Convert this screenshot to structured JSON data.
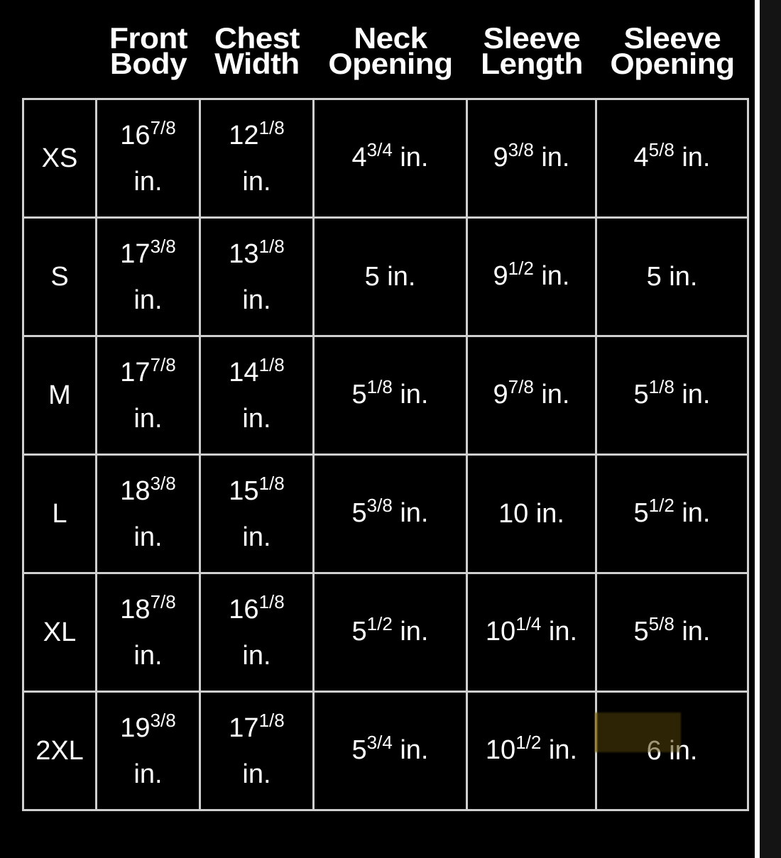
{
  "headers": [
    {
      "line1": "Front",
      "line2": "Body"
    },
    {
      "line1": "Chest",
      "line2": "Width"
    },
    {
      "line1": "Neck",
      "line2": "Opening"
    },
    {
      "line1": "Sleeve",
      "line2": "Length"
    },
    {
      "line1": "Sleeve",
      "line2": "Opening"
    }
  ],
  "unit": "in.",
  "highlight_color": "#8a7120",
  "rows": [
    {
      "size": "XS",
      "cells": [
        [
          "16",
          "7/8"
        ],
        [
          "12",
          "1/8"
        ],
        [
          "4",
          "3/4"
        ],
        [
          "9",
          "3/8"
        ],
        [
          "4",
          "5/8"
        ]
      ]
    },
    {
      "size": "S",
      "cells": [
        [
          "17",
          "3/8"
        ],
        [
          "13",
          "1/8"
        ],
        [
          "5",
          ""
        ],
        [
          "9",
          "1/2"
        ],
        [
          "5",
          ""
        ]
      ]
    },
    {
      "size": "M",
      "cells": [
        [
          "17",
          "7/8"
        ],
        [
          "14",
          "1/8"
        ],
        [
          "5",
          "1/8"
        ],
        [
          "9",
          "7/8"
        ],
        [
          "5",
          "1/8"
        ]
      ]
    },
    {
      "size": "L",
      "cells": [
        [
          "18",
          "3/8"
        ],
        [
          "15",
          "1/8"
        ],
        [
          "5",
          "3/8"
        ],
        [
          "10",
          ""
        ],
        [
          "5",
          "1/2"
        ]
      ]
    },
    {
      "size": "XL",
      "cells": [
        [
          "18",
          "7/8"
        ],
        [
          "16",
          "1/8"
        ],
        [
          "5",
          "1/2"
        ],
        [
          "10",
          "1/4"
        ],
        [
          "5",
          "5/8"
        ]
      ]
    },
    {
      "size": "2XL",
      "cells": [
        [
          "19",
          "3/8"
        ],
        [
          "17",
          "1/8"
        ],
        [
          "5",
          "3/4"
        ],
        [
          "10",
          "1/2"
        ],
        [
          "6",
          ""
        ]
      ]
    }
  ]
}
